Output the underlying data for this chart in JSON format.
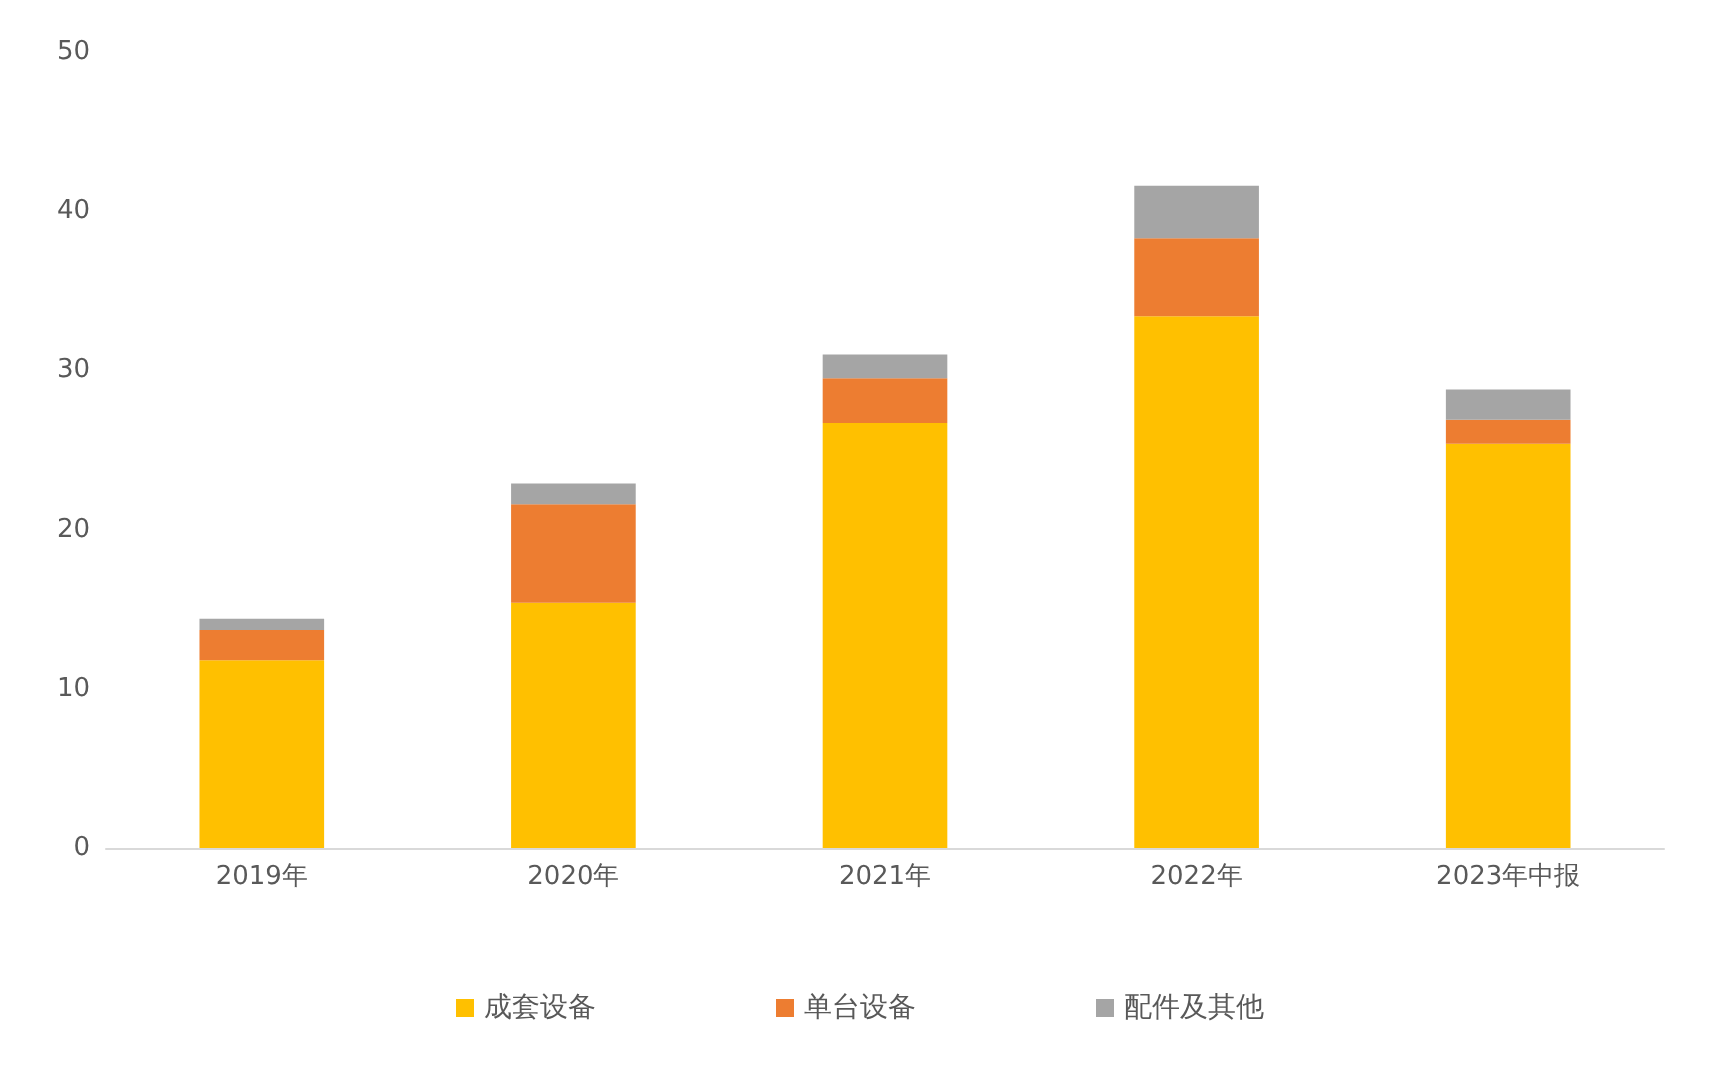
{
  "chart_data": {
    "type": "bar",
    "stacked": true,
    "categories": [
      "2019年",
      "2020年",
      "2021年",
      "2022年",
      "2023年中报"
    ],
    "series": [
      {
        "name": "成套设备",
        "color": "#ffc000",
        "values": [
          11.8,
          15.4,
          26.7,
          33.4,
          25.4
        ]
      },
      {
        "name": "单台设备",
        "color": "#ed7d31",
        "values": [
          1.9,
          6.2,
          2.8,
          4.9,
          1.5
        ]
      },
      {
        "name": "配件及其他",
        "color": "#a5a5a5",
        "values": [
          0.7,
          1.3,
          1.5,
          3.3,
          1.9
        ]
      }
    ],
    "ylim": [
      0,
      50
    ],
    "yticks": [
      0,
      10,
      20,
      30,
      40,
      50
    ],
    "grid": false,
    "legend": "bottom"
  }
}
